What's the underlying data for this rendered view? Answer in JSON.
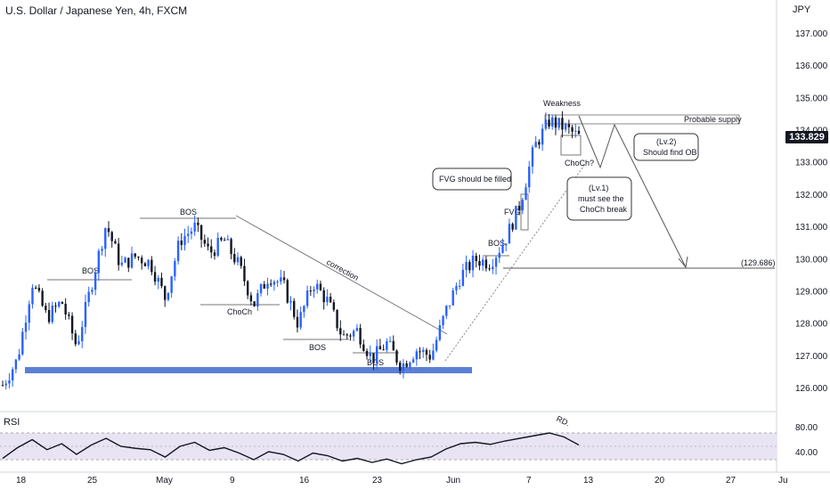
{
  "header": {
    "title": "U.S. Dollar / Japanese Yen, 4h, FXCM",
    "currency": "JPY"
  },
  "current_price": "133.829",
  "colors": {
    "up": "#2962ff",
    "down": "#131722",
    "support": "#5b7fd6",
    "rsi": "#131722"
  },
  "chart_data": {
    "type": "candlestick",
    "symbol": "USD/JPY",
    "timeframe": "4h",
    "y_axis": {
      "ticks": [
        "137.000",
        "136.000",
        "135.000",
        "134.000",
        "133.000",
        "132.000",
        "131.000",
        "130.000",
        "129.000",
        "128.000",
        "127.000",
        "126.000"
      ],
      "range": [
        125.6,
        137.4
      ]
    },
    "x_axis": {
      "ticks": [
        "18",
        "25",
        "May",
        "9",
        "16",
        "23",
        "Jun",
        "7",
        "13",
        "20",
        "27",
        "Ju"
      ]
    },
    "price_path": [
      [
        126.1,
        "18"
      ],
      [
        126.9,
        ""
      ],
      [
        129.3,
        ""
      ],
      [
        128.2,
        ""
      ],
      [
        128.7,
        ""
      ],
      [
        127.3,
        ""
      ],
      [
        129.2,
        ""
      ],
      [
        131.1,
        ""
      ],
      [
        129.8,
        ""
      ],
      [
        130.1,
        ""
      ],
      [
        129.9,
        ""
      ],
      [
        128.8,
        ""
      ],
      [
        130.6,
        ""
      ],
      [
        131.0,
        ""
      ],
      [
        130.2,
        ""
      ],
      [
        130.6,
        ""
      ],
      [
        129.8,
        ""
      ],
      [
        128.6,
        ""
      ],
      [
        129.5,
        ""
      ],
      [
        129.2,
        ""
      ],
      [
        128.0,
        ""
      ],
      [
        129.3,
        ""
      ],
      [
        128.7,
        ""
      ],
      [
        127.6,
        ""
      ],
      [
        127.8,
        ""
      ],
      [
        126.9,
        ""
      ],
      [
        127.4,
        ""
      ],
      [
        126.7,
        ""
      ],
      [
        127.2,
        ""
      ],
      [
        127.0,
        ""
      ],
      [
        128.4,
        ""
      ],
      [
        129.5,
        ""
      ],
      [
        130.0,
        ""
      ],
      [
        129.9,
        ""
      ],
      [
        130.6,
        ""
      ],
      [
        131.7,
        ""
      ],
      [
        133.5,
        ""
      ],
      [
        134.3,
        ""
      ],
      [
        134.1,
        ""
      ],
      [
        133.8,
        ""
      ]
    ],
    "annotations": {
      "bos": [
        "BOS",
        "BOS",
        "BOS",
        "BOS",
        "BOS"
      ],
      "choch": "ChoCh",
      "choch_q": "ChoCh?",
      "correction": "correction",
      "fvg": "FVG",
      "fvg_note": "FVG should be filled",
      "weakness": "Weakness",
      "supply": "Probable supply",
      "level": "(129.686)",
      "lv1": [
        "(Lv.1)",
        "must see the",
        "ChoCh break"
      ],
      "lv2": [
        "(Lv.2)",
        "Should find OB"
      ],
      "rd": "RD."
    },
    "rsi": {
      "label": "RSI",
      "ticks": [
        "80.00",
        "40.00"
      ],
      "values": [
        42,
        58,
        70,
        55,
        64,
        48,
        62,
        72,
        60,
        57,
        55,
        44,
        60,
        66,
        54,
        58,
        50,
        40,
        52,
        48,
        38,
        50,
        46,
        38,
        42,
        36,
        41,
        34,
        40,
        44,
        56,
        64,
        66,
        63,
        68,
        72,
        76,
        80,
        74,
        62
      ]
    }
  }
}
